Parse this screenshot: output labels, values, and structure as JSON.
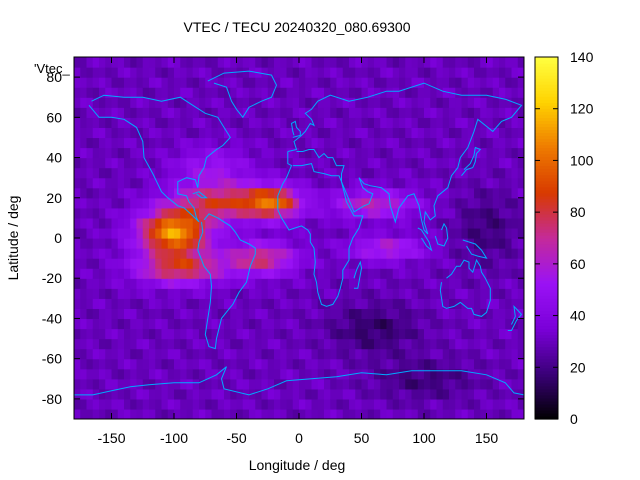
{
  "chart_data": {
    "type": "heatmap",
    "title": "VTEC / TECU 20240320_080.69300",
    "xlabel": "Longitude / deg",
    "ylabel": "Latitude / deg",
    "key_title": "'Vtec_",
    "xlim": [
      -180,
      180
    ],
    "ylim": [
      -90,
      90
    ],
    "xticks": [
      -150,
      -100,
      -50,
      0,
      50,
      100,
      150
    ],
    "yticks": [
      -80,
      -60,
      -40,
      -20,
      0,
      20,
      40,
      60,
      80
    ],
    "colorbar_range": [
      0,
      140
    ],
    "colorbar_ticks": [
      0,
      20,
      40,
      60,
      80,
      100,
      120,
      140
    ],
    "colormap": [
      "#000000",
      "#3a0078",
      "#7a00d8",
      "#9a12f5",
      "#c42a9a",
      "#d83a00",
      "#ee7a00",
      "#ffd200",
      "#ffff40"
    ],
    "coastline_color": "#00aaff",
    "grid_step_deg": 5,
    "vtec_features": {
      "background_tecu": 30,
      "peaks": [
        {
          "name": "equatorial-anomaly-americas",
          "lon": -100,
          "lat": 3,
          "tecu": 112
        },
        {
          "name": "eia-north-atlantic",
          "lon": -20,
          "lat": 18,
          "tecu": 85
        },
        {
          "name": "eia-south-atlantic",
          "lon": -30,
          "lat": -10,
          "tecu": 78
        },
        {
          "name": "indian-ocean-extension",
          "lon": 70,
          "lat": -5,
          "tecu": 65
        },
        {
          "name": "arabian-extension",
          "lon": 60,
          "lat": 17,
          "tecu": 62
        }
      ],
      "lows": [
        {
          "name": "south-indian-ocean-low",
          "lon": 60,
          "lat": -45,
          "tecu": 14
        },
        {
          "name": "west-pacific-low",
          "lon": 150,
          "lat": 5,
          "tecu": 18
        },
        {
          "name": "antarctic-low",
          "lon": 100,
          "lat": -70,
          "tecu": 17
        }
      ]
    }
  }
}
